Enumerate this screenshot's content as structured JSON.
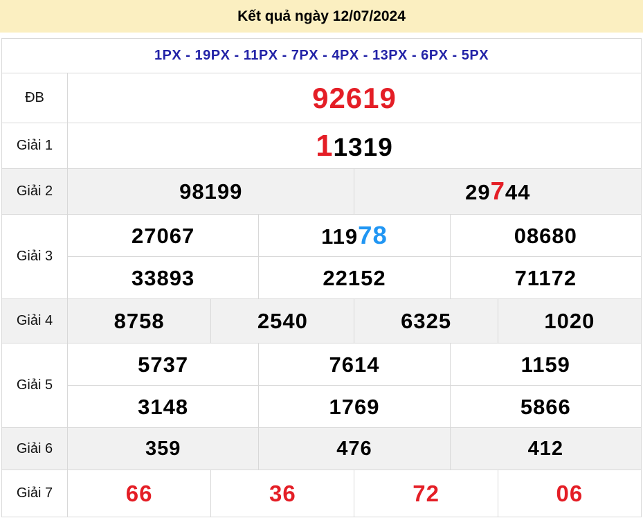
{
  "header": {
    "title": "Kết quả ngày 12/07/2024"
  },
  "stations": {
    "line": "1PX - 19PX - 11PX - 7PX - 4PX - 13PX - 6PX - 5PX"
  },
  "colors": {
    "header_bg": "#fbefc1",
    "red": "#e41e26",
    "blue": "#2196f3",
    "navy": "#2323a7",
    "stripe": "#f1f1f1",
    "border": "#d8d8d8",
    "number_black": "#000000"
  },
  "table": {
    "rows": [
      {
        "key": "db",
        "label": "ĐB",
        "stripe": false,
        "lines": [
          [
            [
              {
                "t": "92619",
                "c": "red"
              }
            ]
          ]
        ]
      },
      {
        "key": "g1",
        "label": "Giải 1",
        "stripe": false,
        "lines": [
          [
            [
              {
                "t": "1",
                "c": "red",
                "big": true
              },
              {
                "t": "1319",
                "c": "black"
              }
            ]
          ]
        ]
      },
      {
        "key": "g2",
        "label": "Giải 2",
        "stripe": true,
        "lines": [
          [
            [
              {
                "t": "98199",
                "c": "black"
              }
            ],
            [
              {
                "t": "29",
                "c": "black"
              },
              {
                "t": "7",
                "c": "red",
                "big": true
              },
              {
                "t": "44",
                "c": "black"
              }
            ]
          ]
        ]
      },
      {
        "key": "g3",
        "label": "Giải 3",
        "stripe": false,
        "lines": [
          [
            [
              {
                "t": "27067",
                "c": "black"
              }
            ],
            [
              {
                "t": "119",
                "c": "black"
              },
              {
                "t": "78",
                "c": "blue",
                "big": true
              }
            ],
            [
              {
                "t": "08680",
                "c": "black"
              }
            ]
          ],
          [
            [
              {
                "t": "33893",
                "c": "black"
              }
            ],
            [
              {
                "t": "22152",
                "c": "black"
              }
            ],
            [
              {
                "t": "71172",
                "c": "black"
              }
            ]
          ]
        ]
      },
      {
        "key": "g4",
        "label": "Giải 4",
        "stripe": true,
        "lines": [
          [
            [
              {
                "t": "8758",
                "c": "black"
              }
            ],
            [
              {
                "t": "2540",
                "c": "black"
              }
            ],
            [
              {
                "t": "6325",
                "c": "black"
              }
            ],
            [
              {
                "t": "1020",
                "c": "black"
              }
            ]
          ]
        ]
      },
      {
        "key": "g5",
        "label": "Giải 5",
        "stripe": false,
        "lines": [
          [
            [
              {
                "t": "5737",
                "c": "black"
              }
            ],
            [
              {
                "t": "7614",
                "c": "black"
              }
            ],
            [
              {
                "t": "1159",
                "c": "black"
              }
            ]
          ],
          [
            [
              {
                "t": "3148",
                "c": "black"
              }
            ],
            [
              {
                "t": "1769",
                "c": "black"
              }
            ],
            [
              {
                "t": "5866",
                "c": "black"
              }
            ]
          ]
        ]
      },
      {
        "key": "g6",
        "label": "Giải 6",
        "stripe": true,
        "lines": [
          [
            [
              {
                "t": "359",
                "c": "black"
              }
            ],
            [
              {
                "t": "476",
                "c": "black"
              }
            ],
            [
              {
                "t": "412",
                "c": "black"
              }
            ]
          ]
        ]
      },
      {
        "key": "g7",
        "label": "Giải 7",
        "stripe": false,
        "lines": [
          [
            [
              {
                "t": "66",
                "c": "red"
              }
            ],
            [
              {
                "t": "36",
                "c": "red"
              }
            ],
            [
              {
                "t": "72",
                "c": "red"
              }
            ],
            [
              {
                "t": "06",
                "c": "red"
              }
            ]
          ]
        ]
      }
    ]
  }
}
